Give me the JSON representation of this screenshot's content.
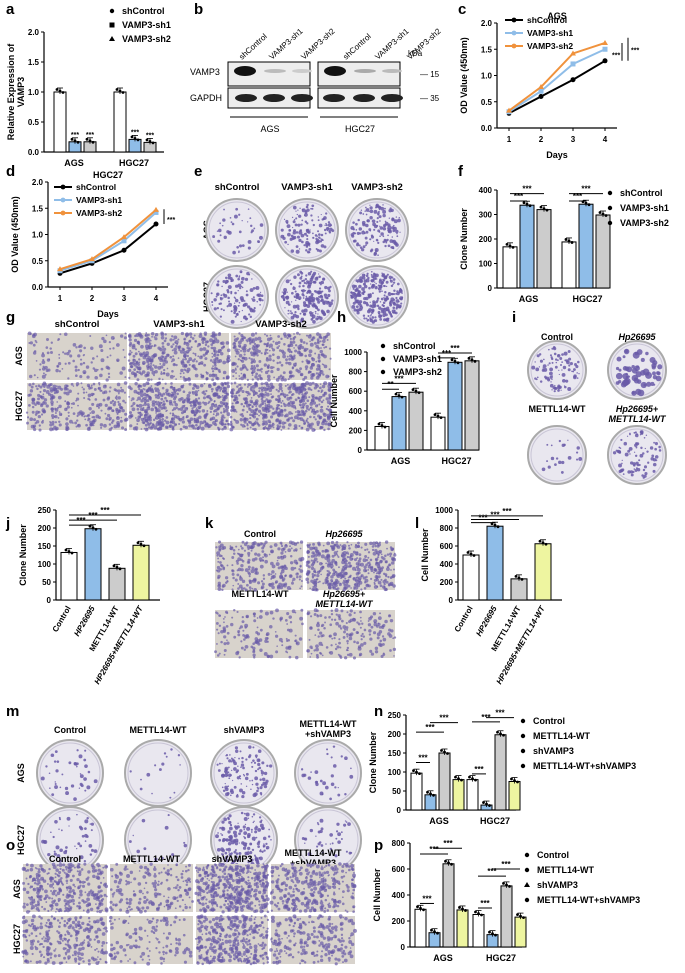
{
  "panel_letters": [
    "a",
    "b",
    "c",
    "d",
    "e",
    "f",
    "g",
    "h",
    "i",
    "j",
    "k",
    "l",
    "m",
    "n",
    "o",
    "p"
  ],
  "colors": {
    "control": "#ffffff",
    "sh1": "#8fbde8",
    "sh2": "#cccccc",
    "wt": "#cccccc",
    "hp": "#8fbde8",
    "combo": "#eef5a0",
    "line_black": "#000000",
    "line_blue": "#8fbde8",
    "line_orange": "#f0923c",
    "stain": "#6a5ba8",
    "dish": "#e9e7ef"
  },
  "panel_a": {
    "ylabel": "Relative Expression of\nVAMP3",
    "legend": [
      "shControl",
      "VAMP3-sh1",
      "VAMP3-sh2"
    ],
    "groups": [
      "AGS",
      "HGC27"
    ],
    "yticks": [
      "0.0",
      "0.5",
      "1.0",
      "1.5",
      "2.0"
    ],
    "sig": "***"
  },
  "panel_b": {
    "bands": [
      "VAMP3",
      "GAPDH"
    ],
    "lanes": [
      "shControl",
      "VAMP3-sh1",
      "VAMP3-sh2",
      "shControl",
      "VAMP3-sh1",
      "VAMP3-sh2"
    ],
    "kda": "kDa",
    "kda_marks": [
      "15",
      "35"
    ],
    "cells": [
      "AGS",
      "HGC27"
    ]
  },
  "panel_c": {
    "title": "AGS",
    "ylabel": "OD Value (450nm)",
    "xlabel": "Days",
    "legend": [
      "shControl",
      "VAMP3-sh1",
      "VAMP3-sh2"
    ],
    "yticks": [
      "0.0",
      "0.5",
      "1.0",
      "1.5",
      "2.0"
    ],
    "xticks": [
      "1",
      "2",
      "3",
      "4"
    ],
    "sig": "***"
  },
  "panel_d": {
    "title": "HGC27",
    "ylabel": "OD Value (450nm)",
    "xlabel": "Days",
    "legend": [
      "shControl",
      "VAMP3-sh1",
      "VAMP3-sh2"
    ],
    "yticks": [
      "0.0",
      "0.5",
      "1.0",
      "1.5",
      "2.0"
    ],
    "xticks": [
      "1",
      "2",
      "3",
      "4"
    ],
    "sig": "***"
  },
  "panel_e": {
    "cols": [
      "shControl",
      "VAMP3-sh1",
      "VAMP3-sh2"
    ],
    "rows": [
      "AGS",
      "HGC27"
    ]
  },
  "panel_f": {
    "ylabel": "Clone Number",
    "legend": [
      "shControl",
      "VAMP3-sh1",
      "VAMP3-sh2"
    ],
    "groups": [
      "AGS",
      "HGC27"
    ],
    "yticks": [
      "0",
      "100",
      "200",
      "300",
      "400"
    ],
    "sig": "***"
  },
  "panel_g": {
    "cols": [
      "shControl",
      "VAMP3-sh1",
      "VAMP3-sh2"
    ],
    "rows": [
      "AGS",
      "HGC27"
    ]
  },
  "panel_h": {
    "ylabel": "Cell Number",
    "legend": [
      "shControl",
      "VAMP3-sh1",
      "VAMP3-sh2"
    ],
    "groups": [
      "AGS",
      "HGC27"
    ],
    "yticks": [
      "0",
      "200",
      "400",
      "600",
      "800",
      "1000"
    ],
    "sig": "***",
    "sig2": "**"
  },
  "panel_i": {
    "labels": [
      "Control",
      "Hp26695",
      "METTL14-WT",
      "Hp26695+\nMETTL14-WT"
    ]
  },
  "panel_j": {
    "ylabel": "Clone Number",
    "xcats": [
      "Control",
      "HP26695",
      "METTL14-WT",
      "HP26695+METTL14-WT"
    ],
    "yticks": [
      "0",
      "50",
      "100",
      "150",
      "200",
      "250"
    ],
    "sig": "***"
  },
  "panel_k": {
    "labels": [
      "Control",
      "Hp26695",
      "METTL14-WT",
      "Hp26695+\nMETTL14-WT"
    ]
  },
  "panel_l": {
    "ylabel": "Cell Number",
    "xcats": [
      "Control",
      "HP26695",
      "METTL14-WT",
      "HP26695+METTL14-WT"
    ],
    "yticks": [
      "0",
      "200",
      "400",
      "600",
      "800",
      "1000"
    ],
    "sig": "***"
  },
  "panel_m": {
    "cols": [
      "Control",
      "METTL14-WT",
      "shVAMP3",
      "METTL14-WT\n+shVAMP3"
    ],
    "rows": [
      "AGS",
      "HGC27"
    ]
  },
  "panel_n": {
    "ylabel": "Clone Number",
    "legend": [
      "Control",
      "METTL14-WT",
      "shVAMP3",
      "METTL14-WT+shVAMP3"
    ],
    "groups": [
      "AGS",
      "HGC27"
    ],
    "yticks": [
      "0",
      "50",
      "100",
      "150",
      "200",
      "250"
    ],
    "sig": "***"
  },
  "panel_o": {
    "cols": [
      "Control",
      "METTL14-WT",
      "shVAMP3",
      "METTL14-WT\n+shVAMP3"
    ],
    "rows": [
      "AGS",
      "HGC27"
    ]
  },
  "panel_p": {
    "ylabel": "Cell Number",
    "legend": [
      "Control",
      "METTL14-WT",
      "shVAMP3",
      "METTL14-WT+shVAMP3"
    ],
    "groups": [
      "AGS",
      "HGC27"
    ],
    "yticks": [
      "0",
      "200",
      "400",
      "600",
      "800"
    ],
    "sig": "***"
  },
  "chart_data": [
    {
      "panel": "a",
      "type": "bar",
      "categories": [
        "AGS",
        "HGC27"
      ],
      "series": [
        {
          "name": "shControl",
          "values": [
            1.0,
            1.0
          ]
        },
        {
          "name": "VAMP3-sh1",
          "values": [
            0.17,
            0.21
          ]
        },
        {
          "name": "VAMP3-sh2",
          "values": [
            0.17,
            0.16
          ]
        }
      ],
      "ylabel": "Relative Expression of VAMP3",
      "ylim": [
        0,
        2.0
      ]
    },
    {
      "panel": "c",
      "type": "line",
      "title": "AGS",
      "x": [
        1,
        2,
        3,
        4
      ],
      "series": [
        {
          "name": "shControl",
          "values": [
            0.28,
            0.6,
            0.92,
            1.28
          ]
        },
        {
          "name": "VAMP3-sh1",
          "values": [
            0.31,
            0.7,
            1.22,
            1.5
          ]
        },
        {
          "name": "VAMP3-sh2",
          "values": [
            0.33,
            0.78,
            1.42,
            1.62
          ]
        }
      ],
      "xlabel": "Days",
      "ylabel": "OD Value (450nm)",
      "ylim": [
        0,
        2.0
      ]
    },
    {
      "panel": "d",
      "type": "line",
      "title": "HGC27",
      "x": [
        1,
        2,
        3,
        4
      ],
      "series": [
        {
          "name": "shControl",
          "values": [
            0.26,
            0.45,
            0.7,
            1.2
          ]
        },
        {
          "name": "VAMP3-sh1",
          "values": [
            0.31,
            0.5,
            0.88,
            1.42
          ]
        },
        {
          "name": "VAMP3-sh2",
          "values": [
            0.34,
            0.53,
            0.95,
            1.47
          ]
        }
      ],
      "xlabel": "Days",
      "ylabel": "OD Value (450nm)",
      "ylim": [
        0,
        2.0
      ]
    },
    {
      "panel": "f",
      "type": "bar",
      "categories": [
        "AGS",
        "HGC27"
      ],
      "series": [
        {
          "name": "shControl",
          "values": [
            168,
            188
          ]
        },
        {
          "name": "VAMP3-sh1",
          "values": [
            338,
            342
          ]
        },
        {
          "name": "VAMP3-sh2",
          "values": [
            320,
            298
          ]
        }
      ],
      "ylabel": "Clone Number",
      "ylim": [
        0,
        400
      ]
    },
    {
      "panel": "h",
      "type": "bar",
      "categories": [
        "AGS",
        "HGC27"
      ],
      "series": [
        {
          "name": "shControl",
          "values": [
            240,
            335
          ]
        },
        {
          "name": "VAMP3-sh1",
          "values": [
            545,
            895
          ]
        },
        {
          "name": "VAMP3-sh2",
          "values": [
            590,
            910
          ]
        }
      ],
      "ylabel": "Cell Number",
      "ylim": [
        0,
        1000
      ]
    },
    {
      "panel": "j",
      "type": "bar",
      "categories": [
        "Control",
        "HP26695",
        "METTL14-WT",
        "HP26695+METTL14-WT"
      ],
      "values": [
        132,
        198,
        88,
        152
      ],
      "ylabel": "Clone Number",
      "ylim": [
        0,
        250
      ]
    },
    {
      "panel": "l",
      "type": "bar",
      "categories": [
        "Control",
        "HP26695",
        "METTL14-WT",
        "HP26695+METTL14-WT"
      ],
      "values": [
        500,
        820,
        235,
        625
      ],
      "ylabel": "Cell Number",
      "ylim": [
        0,
        1000
      ]
    },
    {
      "panel": "n",
      "type": "bar",
      "categories": [
        "AGS",
        "HGC27"
      ],
      "series": [
        {
          "name": "Control",
          "values": [
            97,
            80
          ]
        },
        {
          "name": "METTL14-WT",
          "values": [
            40,
            13
          ]
        },
        {
          "name": "shVAMP3",
          "values": [
            150,
            198
          ]
        },
        {
          "name": "METTL14-WT+shVAMP3",
          "values": [
            80,
            75
          ]
        }
      ],
      "ylabel": "Clone Number",
      "ylim": [
        0,
        250
      ]
    },
    {
      "panel": "p",
      "type": "bar",
      "categories": [
        "AGS",
        "HGC27"
      ],
      "series": [
        {
          "name": "Control",
          "values": [
            290,
            250
          ]
        },
        {
          "name": "METTL14-WT",
          "values": [
            110,
            95
          ]
        },
        {
          "name": "shVAMP3",
          "values": [
            640,
            470
          ]
        },
        {
          "name": "METTL14-WT+shVAMP3",
          "values": [
            285,
            230
          ]
        }
      ],
      "ylabel": "Cell Number",
      "ylim": [
        0,
        800
      ]
    }
  ]
}
